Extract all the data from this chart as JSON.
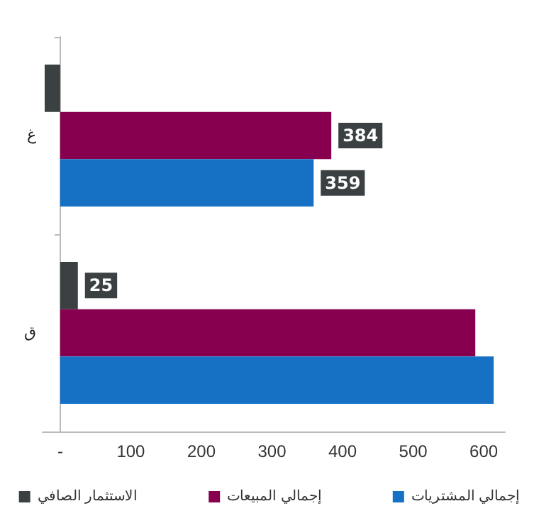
{
  "chart_data": {
    "type": "bar",
    "orientation": "horizontal",
    "categories": [
      "غ",
      "ق"
    ],
    "series": [
      {
        "name": "الاستثمار الصافي",
        "color": "#3b4142",
        "values": [
          -22,
          25
        ],
        "value_labels": [
          null,
          "25"
        ]
      },
      {
        "name": "إجمالي المبيعات",
        "color": "#87004f",
        "values": [
          384,
          588
        ],
        "value_labels": [
          "384",
          null
        ]
      },
      {
        "name": "إجمالي المشتريات",
        "color": "#1670c4",
        "values": [
          359,
          614
        ],
        "value_labels": [
          "359",
          null
        ]
      }
    ],
    "xlim": [
      -25,
      630
    ],
    "xticks": [
      {
        "value": 0,
        "label": "-"
      },
      100,
      200,
      300,
      400,
      500,
      600
    ],
    "grid": false,
    "legend": "bottom"
  }
}
